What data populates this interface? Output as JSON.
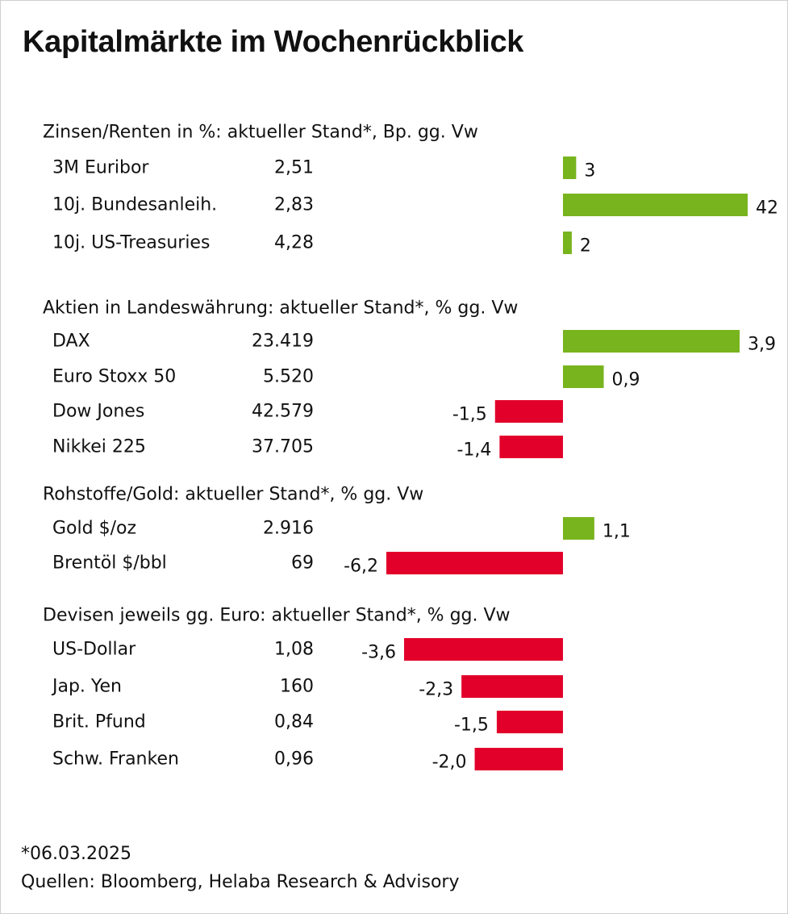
{
  "title": "Kapitalmärkte im Wochenrückblick",
  "colors": {
    "positive": "#78b41e",
    "negative": "#e2002a",
    "text": "#111111"
  },
  "chart_data": {
    "type": "bar",
    "orientation": "horizontal",
    "groups": [
      {
        "heading": "Zinsen/Renten in %: aktueller Stand*, Bp. gg. Vw",
        "unit": "Bp.",
        "rows": [
          {
            "label": "3M Euribor",
            "stand": "2,51",
            "change": 3,
            "change_label": "3"
          },
          {
            "label": "10j. Bundesanleih.",
            "stand": "2,83",
            "change": 42,
            "change_label": "42"
          },
          {
            "label": "10j. US-Treasuries",
            "stand": "4,28",
            "change": 2,
            "change_label": "2"
          }
        ]
      },
      {
        "heading": "Aktien in Landeswährung: aktueller Stand*, % gg. Vw",
        "unit": "%",
        "rows": [
          {
            "label": "DAX",
            "stand": "23.419",
            "change": 3.9,
            "change_label": "3,9"
          },
          {
            "label": "Euro Stoxx 50",
            "stand": "5.520",
            "change": 0.9,
            "change_label": "0,9"
          },
          {
            "label": "Dow Jones",
            "stand": "42.579",
            "change": -1.5,
            "change_label": "-1,5"
          },
          {
            "label": "Nikkei 225",
            "stand": "37.705",
            "change": -1.4,
            "change_label": "-1,4"
          }
        ]
      },
      {
        "heading": "Rohstoffe/Gold: aktueller Stand*, % gg. Vw",
        "unit": "%",
        "rows": [
          {
            "label": "Gold $/oz",
            "stand": "2.916",
            "change": 1.1,
            "change_label": "1,1"
          },
          {
            "label": "Brentöl $/bbl",
            "stand": "69",
            "change": -6.2,
            "change_label": "-6,2"
          }
        ]
      },
      {
        "heading": "Devisen jeweils gg. Euro: aktueller Stand*, % gg. Vw",
        "unit": "%",
        "rows": [
          {
            "label": "US-Dollar",
            "stand": "1,08",
            "change": -3.6,
            "change_label": "-3,6"
          },
          {
            "label": "Jap. Yen",
            "stand": "160",
            "change": -2.3,
            "change_label": "-2,3"
          },
          {
            "label": "Brit. Pfund",
            "stand": "0,84",
            "change": -1.5,
            "change_label": "-1,5"
          },
          {
            "label": "Schw. Franken",
            "stand": "0,96",
            "change": -2.0,
            "change_label": "-2,0"
          }
        ]
      }
    ]
  },
  "footnote": "*06.03.2025",
  "sources": "Quellen: Bloomberg, Helaba Research & Advisory"
}
